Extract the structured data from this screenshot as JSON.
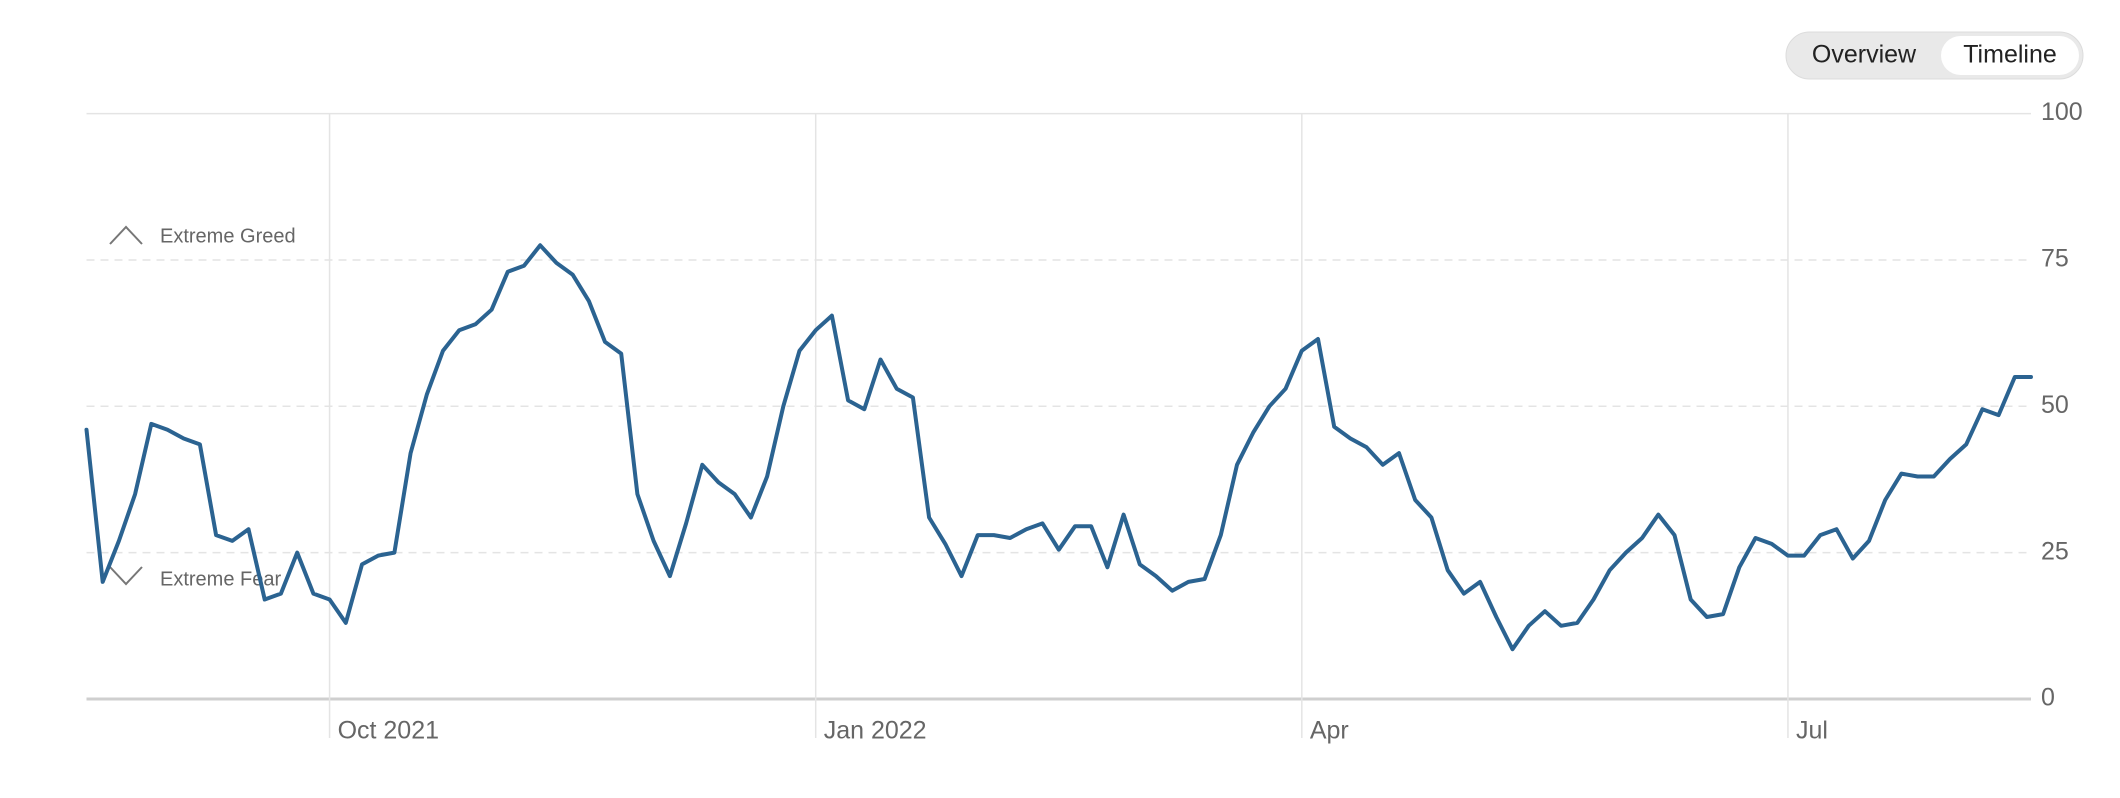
{
  "buttons": [
    "Overview",
    "Timeline"
  ],
  "chart_data": {
    "type": "line",
    "annotations": [
      "Extreme Greed",
      "Extreme Fear"
    ],
    "categories": [
      null,
      null,
      null,
      null,
      null,
      null,
      null,
      null,
      null,
      null,
      null,
      null,
      null,
      null,
      null,
      "Oct 2021",
      null,
      null,
      null,
      null,
      null,
      null,
      null,
      null,
      null,
      null,
      null,
      null,
      null,
      null,
      null,
      null,
      null,
      null,
      null,
      null,
      null,
      null,
      null,
      null,
      null,
      null,
      null,
      null,
      null,
      "Jan 2022",
      null,
      null,
      null,
      null,
      null,
      null,
      null,
      null,
      null,
      null,
      null,
      null,
      null,
      null,
      null,
      null,
      null,
      null,
      null,
      null,
      null,
      null,
      null,
      null,
      null,
      null,
      null,
      null,
      null,
      "Apr",
      null,
      null,
      null,
      null,
      null,
      null,
      null,
      null,
      null,
      null,
      null,
      null,
      null,
      null,
      null,
      null,
      null,
      null,
      null,
      null,
      null,
      null,
      null,
      null,
      null,
      null,
      null,
      null,
      null,
      "Jul",
      null,
      null,
      null,
      null,
      null,
      null,
      null,
      null,
      null,
      null,
      null,
      null,
      null,
      null,
      null
    ],
    "values": [
      46,
      20,
      27,
      35,
      47,
      46,
      44.5,
      43.5,
      28,
      27,
      29,
      17,
      18,
      25,
      18,
      17,
      13,
      23,
      24.5,
      25,
      42,
      52,
      59.5,
      63,
      64,
      66.5,
      73,
      74,
      77.5,
      74.5,
      72.5,
      68,
      61,
      59,
      35,
      27,
      21,
      30,
      40,
      37,
      35,
      31,
      38,
      50,
      59.5,
      63,
      65.5,
      51,
      49.5,
      58,
      53,
      51.5,
      31,
      26.5,
      21,
      28,
      28,
      27.5,
      29,
      30,
      25.5,
      29.5,
      29.5,
      22.5,
      31.5,
      23,
      21,
      18.5,
      20,
      20.5,
      28,
      40,
      45.5,
      50,
      53,
      59.5,
      61.5,
      46.5,
      44.5,
      43,
      40,
      42,
      34,
      31,
      22,
      18,
      20,
      14,
      8.5,
      12.5,
      15,
      12.5,
      13,
      17,
      22,
      25,
      27.5,
      31.5,
      28,
      17,
      14,
      14.5,
      22.5,
      27.5,
      26.5,
      24.5,
      24.5,
      28,
      29,
      24,
      27,
      34,
      38.5,
      38,
      38,
      41,
      43.5,
      49.5,
      48.5,
      55,
      55
    ],
    "color": "#2b6391",
    "ylim": [
      0,
      100
    ],
    "yticks": [
      0,
      25,
      50,
      75,
      100
    ],
    "grid": true
  }
}
